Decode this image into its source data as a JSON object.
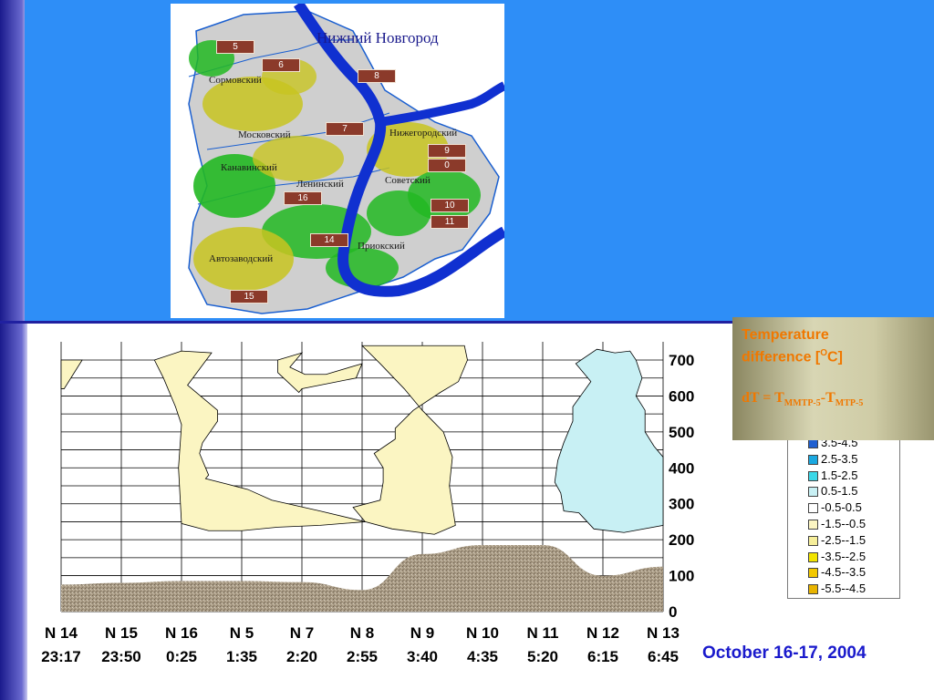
{
  "map": {
    "title": "Нижний Новгород",
    "districts": [
      "Сормовский",
      "Московский",
      "Канавинский",
      "Ленинский",
      "Нижегородский",
      "Советский",
      "Приокский",
      "Автозаводский"
    ],
    "markers": [
      "5",
      "6",
      "8",
      "7",
      "9",
      "0",
      "16",
      "10",
      "11",
      "14",
      "15"
    ]
  },
  "info": {
    "title_line1": "Temperature",
    "title_line2": "difference [",
    "title_unit": "O",
    "title_end": "C]",
    "formula_lhs": "dT = T",
    "formula_sub1": "MMTP-5",
    "formula_mid": "-T",
    "formula_sub2": "MTP-5"
  },
  "legend": {
    "entries": [
      {
        "label": "3.5-4.5",
        "color": "#1f5fd0"
      },
      {
        "label": "2.5-3.5",
        "color": "#1aa8e0"
      },
      {
        "label": "1.5-2.5",
        "color": "#3cd8e8"
      },
      {
        "label": "0.5-1.5",
        "color": "#c8f0f4"
      },
      {
        "label": "-0.5-0.5",
        "color": "#ffffff"
      },
      {
        "label": "-1.5--0.5",
        "color": "#fbf5c2"
      },
      {
        "label": "-2.5--1.5",
        "color": "#f6ee9a"
      },
      {
        "label": "-3.5--2.5",
        "color": "#f2e400"
      },
      {
        "label": "-4.5--3.5",
        "color": "#f2c800"
      },
      {
        "label": "-5.5--4.5",
        "color": "#e8b400"
      }
    ]
  },
  "date": "October 16-17, 2004",
  "chart_data": {
    "type": "heatmap",
    "title": "",
    "xlabel": "",
    "ylabel": "",
    "ylim": [
      0,
      740
    ],
    "yticks": [
      "0",
      "100",
      "200",
      "300",
      "400",
      "500",
      "600",
      "700"
    ],
    "x": [
      {
        "point": "N 14",
        "time": "23:17"
      },
      {
        "point": "N 15",
        "time": "23:50"
      },
      {
        "point": "N 16",
        "time": "0:25"
      },
      {
        "point": "N 5",
        "time": "1:35"
      },
      {
        "point": "N 7",
        "time": "2:20"
      },
      {
        "point": "N 8",
        "time": "2:55"
      },
      {
        "point": "N 9",
        "time": "3:40"
      },
      {
        "point": "N 10",
        "time": "4:35"
      },
      {
        "point": "N 11",
        "time": "5:20"
      },
      {
        "point": "N 12",
        "time": "6:15"
      },
      {
        "point": "N 13",
        "time": "6:45"
      }
    ],
    "terrain_height": [
      75,
      80,
      85,
      85,
      82,
      60,
      160,
      185,
      185,
      100,
      125
    ],
    "regions": [
      {
        "class": "-1.5--0.5",
        "color": "#fbf5c2",
        "polygon": [
          [
            0,
            700
          ],
          [
            0.35,
            700
          ],
          [
            0.05,
            620
          ],
          [
            0,
            620
          ]
        ]
      },
      {
        "class": "-1.5--0.5",
        "color": "#fbf5c2",
        "polygon": [
          [
            1.55,
            700
          ],
          [
            2.0,
            725
          ],
          [
            2.5,
            720
          ],
          [
            2.1,
            630
          ],
          [
            2.6,
            560
          ],
          [
            2.6,
            530
          ],
          [
            2.35,
            470
          ],
          [
            2.3,
            440
          ],
          [
            2.45,
            380
          ],
          [
            2.4,
            370
          ],
          [
            2.75,
            355
          ],
          [
            3.1,
            340
          ],
          [
            3.5,
            310
          ],
          [
            4.3,
            280
          ],
          [
            5.05,
            250
          ],
          [
            4.3,
            240
          ],
          [
            3.6,
            235
          ],
          [
            3.0,
            225
          ],
          [
            2.45,
            225
          ],
          [
            2.0,
            245
          ],
          [
            1.95,
            400
          ],
          [
            2.0,
            520
          ],
          [
            1.9,
            570
          ],
          [
            1.7,
            650
          ]
        ]
      },
      {
        "class": "-1.5--0.5",
        "color": "#fbf5c2",
        "polygon": [
          [
            3.6,
            700
          ],
          [
            4.0,
            720
          ],
          [
            3.8,
            680
          ],
          [
            4.05,
            660
          ],
          [
            4.4,
            660
          ],
          [
            5.0,
            690
          ],
          [
            4.9,
            650
          ],
          [
            4.0,
            620
          ],
          [
            3.95,
            610
          ],
          [
            3.6,
            665
          ]
        ]
      },
      {
        "class": "-1.5--0.5",
        "color": "#fbf5c2",
        "polygon": [
          [
            5.0,
            740
          ],
          [
            5.5,
            740
          ],
          [
            6.7,
            740
          ],
          [
            6.75,
            700
          ],
          [
            6.6,
            640
          ],
          [
            6.3,
            610
          ],
          [
            5.85,
            560
          ],
          [
            5.55,
            510
          ],
          [
            5.55,
            480
          ],
          [
            5.2,
            440
          ],
          [
            5.35,
            400
          ],
          [
            5.35,
            360
          ],
          [
            5.3,
            310
          ],
          [
            4.85,
            290
          ],
          [
            5.05,
            250
          ],
          [
            5.5,
            230
          ],
          [
            6.2,
            215
          ],
          [
            6.55,
            240
          ],
          [
            6.45,
            350
          ],
          [
            6.5,
            430
          ],
          [
            6.35,
            500
          ],
          [
            6.0,
            560
          ],
          [
            5.7,
            620
          ],
          [
            5.3,
            690
          ]
        ]
      },
      {
        "class": "0.5-1.5",
        "color": "#c8f0f4",
        "polygon": [
          [
            8.9,
            730
          ],
          [
            9.2,
            720
          ],
          [
            9.45,
            725
          ],
          [
            9.55,
            700
          ],
          [
            9.65,
            650
          ],
          [
            9.55,
            600
          ],
          [
            9.7,
            560
          ],
          [
            9.7,
            500
          ],
          [
            9.85,
            460
          ],
          [
            10.0,
            430
          ],
          [
            10.0,
            240
          ],
          [
            9.35,
            220
          ],
          [
            8.85,
            230
          ],
          [
            8.6,
            275
          ],
          [
            8.35,
            280
          ],
          [
            8.3,
            330
          ],
          [
            8.2,
            360
          ],
          [
            8.25,
            420
          ],
          [
            8.35,
            470
          ],
          [
            8.4,
            490
          ],
          [
            8.5,
            530
          ],
          [
            8.5,
            570
          ],
          [
            8.8,
            640
          ],
          [
            8.55,
            690
          ]
        ]
      }
    ]
  }
}
